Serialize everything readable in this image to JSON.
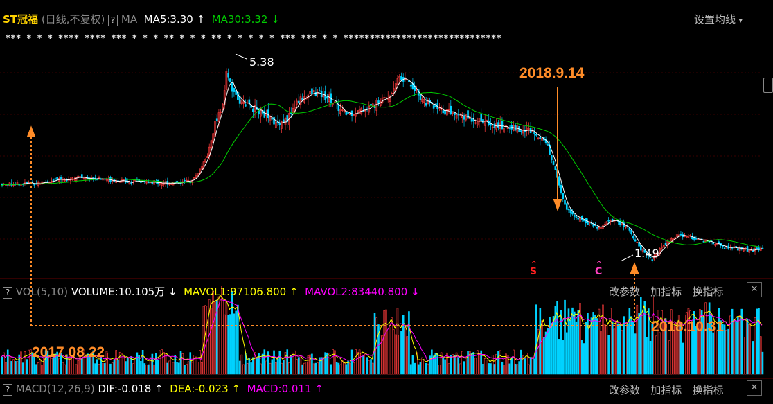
{
  "chart_data": [
    {
      "type": "candlestick",
      "title": "ST冠福",
      "subtitle": "(日线,不复权)",
      "indicator_label": "MA",
      "ma_labels": {
        "ma5": "MA5:3.30",
        "ma30": "MA30:3.32"
      },
      "settings_label": "设置均线",
      "high_label": "5.38",
      "low_label": "1.49",
      "markers": {
        "s": "S",
        "c": "C"
      },
      "x_dates": [
        "2017.08.22",
        "2018.9.14",
        "2018.10.31"
      ],
      "ylim": [
        1.2,
        6.0
      ],
      "price_path": [
        [
          0,
          3.05
        ],
        [
          20,
          3.08
        ],
        [
          40,
          3.2
        ],
        [
          55,
          3.15
        ],
        [
          70,
          3.1
        ],
        [
          90,
          3.08
        ],
        [
          100,
          3.12
        ],
        [
          108,
          3.6
        ],
        [
          112,
          4.3
        ],
        [
          116,
          4.65
        ],
        [
          118,
          5.38
        ],
        [
          122,
          4.9
        ],
        [
          128,
          4.7
        ],
        [
          136,
          4.55
        ],
        [
          144,
          4.3
        ],
        [
          150,
          4.4
        ],
        [
          156,
          4.8
        ],
        [
          164,
          4.95
        ],
        [
          172,
          4.85
        ],
        [
          180,
          4.5
        ],
        [
          188,
          4.55
        ],
        [
          196,
          4.7
        ],
        [
          204,
          4.9
        ],
        [
          208,
          5.25
        ],
        [
          214,
          5.2
        ],
        [
          220,
          4.85
        ],
        [
          228,
          4.6
        ],
        [
          236,
          4.55
        ],
        [
          244,
          4.45
        ],
        [
          252,
          4.35
        ],
        [
          262,
          4.25
        ],
        [
          272,
          4.2
        ],
        [
          280,
          4.15
        ],
        [
          286,
          3.95
        ],
        [
          292,
          3.2
        ],
        [
          296,
          2.6
        ],
        [
          302,
          2.35
        ],
        [
          306,
          2.3
        ],
        [
          314,
          2.15
        ],
        [
          320,
          2.3
        ],
        [
          328,
          2.2
        ],
        [
          336,
          1.7
        ],
        [
          342,
          1.49
        ],
        [
          348,
          1.8
        ],
        [
          356,
          2.0
        ],
        [
          364,
          1.95
        ],
        [
          372,
          1.85
        ],
        [
          380,
          1.75
        ],
        [
          392,
          1.7
        ],
        [
          400,
          1.72
        ]
      ]
    },
    {
      "type": "bar",
      "title": "VOL(5,10)",
      "volume_label": "VOLUME:10.105万",
      "mavol1_label": "MAVOL1:97106.800",
      "mavol2_label": "MAVOL2:83440.800"
    },
    {
      "type": "bar",
      "title": "MACD(12,26,9)",
      "dif_label": "DIF:-0.018",
      "dea_label": "DEA:-0.023",
      "macd_label": "MACD:0.011"
    }
  ],
  "buttons": {
    "change_params": "改参数",
    "add_indicator": "加指标",
    "switch_indicator": "换指标"
  },
  "help_label": "?",
  "arrows": {
    "up": "↑",
    "down": "↓"
  },
  "close_label": "✕",
  "colors": {
    "up": "#ff3c3c",
    "down": "#00d2ff",
    "ma5": "#ffffff",
    "ma30": "#00cc00",
    "mavol1": "#ffff00",
    "mavol2": "#ff00ff",
    "annotation": "#ff8c28"
  }
}
